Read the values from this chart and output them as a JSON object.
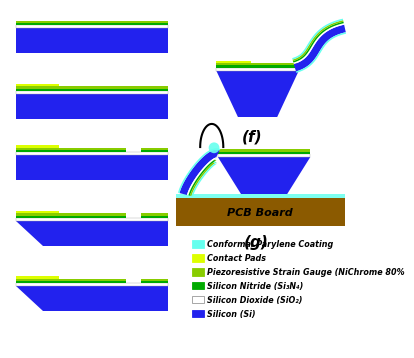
{
  "colors": {
    "silicon": "#2222EE",
    "silicon_nitride": "#00AA00",
    "silicon_dioxide": "#FFFFFF",
    "contact_pads": "#DDFF00",
    "piezoresistive": "#88CC00",
    "parylene": "#66FFEE",
    "pcb": "#8B5A00",
    "background": "#FFFFFF"
  },
  "legend_items": [
    {
      "label": "Conformal Parylene Coating",
      "color": "#66FFEE"
    },
    {
      "label": "Contact Pads",
      "color": "#DDFF00"
    },
    {
      "label": "Piezoresistive Strain Gauge (NiChrome 80%",
      "color": "#88CC00"
    },
    {
      "label": "Silicon Nitride (Si₃N₄)",
      "color": "#00AA00"
    },
    {
      "label": "Silicon Dioxide (SiO₂)",
      "color": "#FFFFFF"
    },
    {
      "label": "Silicon (Si)",
      "color": "#2222EE"
    }
  ],
  "label_f": "(f)",
  "label_g": "(g)",
  "pcb_label": "PCB Board"
}
